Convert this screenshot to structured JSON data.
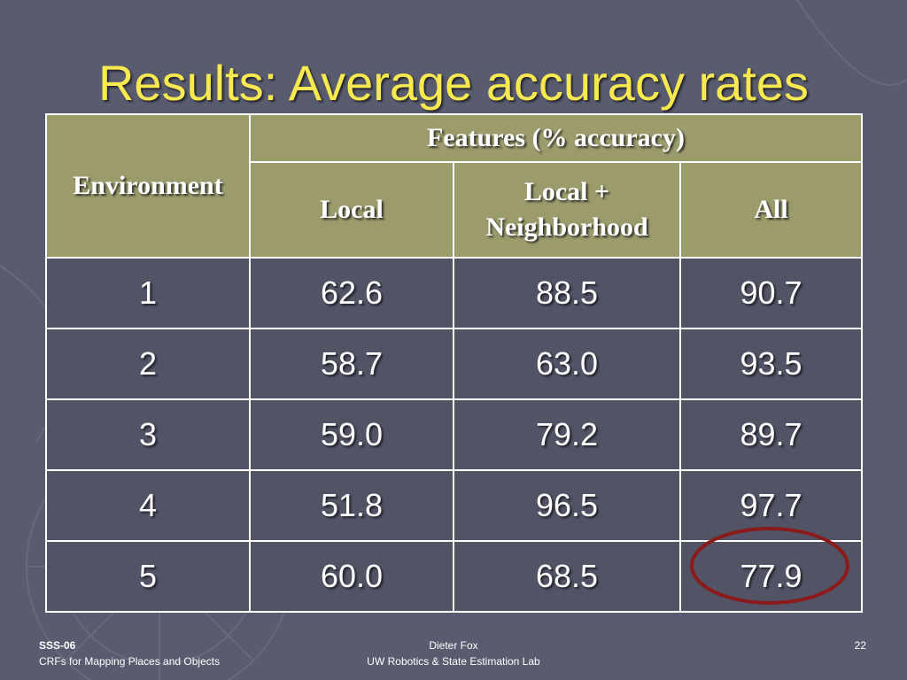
{
  "slide": {
    "title": "Results: Average accuracy rates",
    "background_color": "#595c6e",
    "title_color": "#f7e94f",
    "header_color": "#9c9b6c",
    "highlight_color": "#8b1a1a"
  },
  "table": {
    "header": {
      "environment": "Environment",
      "features": "Features (% accuracy)",
      "local": "Local",
      "local_neighborhood_line1": "Local +",
      "local_neighborhood_line2": "Neighborhood",
      "all": "All"
    },
    "rows": [
      {
        "env": "1",
        "local": "62.6",
        "local_neighborhood": "88.5",
        "all": "90.7"
      },
      {
        "env": "2",
        "local": "58.7",
        "local_neighborhood": "63.0",
        "all": "93.5"
      },
      {
        "env": "3",
        "local": "59.0",
        "local_neighborhood": "79.2",
        "all": "89.7"
      },
      {
        "env": "4",
        "local": "51.8",
        "local_neighborhood": "96.5",
        "all": "97.7"
      },
      {
        "env": "5",
        "local": "60.0",
        "local_neighborhood": "68.5",
        "all": "77.9"
      }
    ]
  },
  "footer": {
    "left_line1": "SSS-06",
    "left_line2": "CRFs for Mapping Places and Objects",
    "center_line1": "Dieter Fox",
    "center_line2": "UW Robotics & State Estimation Lab",
    "page_number": "22"
  }
}
